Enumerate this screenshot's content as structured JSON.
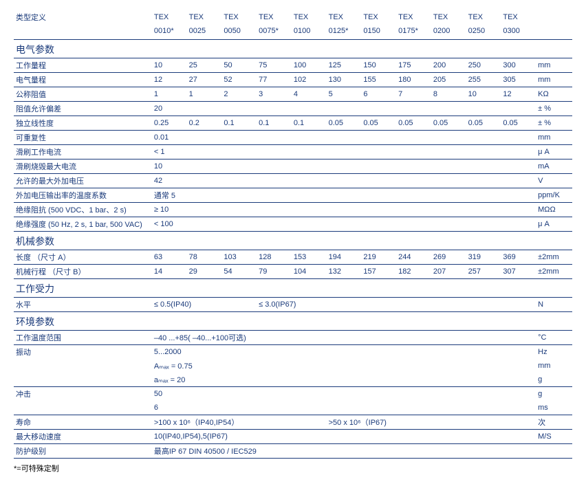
{
  "colors": {
    "primary": "#1a3a7a",
    "background": "#ffffff",
    "footnote": "#000000"
  },
  "fonts": {
    "body_size": 11,
    "section_size": 14
  },
  "header": {
    "type_label": "类型定义",
    "prefix": "TEX",
    "codes": [
      "0010*",
      "0025",
      "0050",
      "0075*",
      "0100",
      "0125*",
      "0150",
      "0175*",
      "0200",
      "0250",
      "0300"
    ]
  },
  "sections": {
    "electrical": "电气参数",
    "mechanical": "机械参数",
    "force": "工作受力",
    "environment": "环境参数"
  },
  "rows": {
    "stroke": {
      "label": "工作量程",
      "vals": [
        "10",
        "25",
        "50",
        "75",
        "100",
        "125",
        "150",
        "175",
        "200",
        "250",
        "300"
      ],
      "unit": "mm"
    },
    "elec_range": {
      "label": "电气量程",
      "vals": [
        "12",
        "27",
        "52",
        "77",
        "102",
        "130",
        "155",
        "180",
        "205",
        "255",
        "305"
      ],
      "unit": "mm"
    },
    "resistance": {
      "label": "公称阻值",
      "vals": [
        "1",
        "1",
        "2",
        "3",
        "4",
        "5",
        "6",
        "7",
        "8",
        "10",
        "12"
      ],
      "unit": "KΩ"
    },
    "tolerance": {
      "label": "阻值允许偏差",
      "vals": [
        "20",
        "",
        "",
        "",
        "",
        "",
        "",
        "",
        "",
        "",
        ""
      ],
      "unit": "± %"
    },
    "linearity": {
      "label": "独立线性度",
      "vals": [
        "0.25",
        "0.2",
        "0.1",
        "0.1",
        "0.1",
        "0.05",
        "0.05",
        "0.05",
        "0.05",
        "0.05",
        "0.05"
      ],
      "unit": "± %"
    },
    "repeat": {
      "label": "可重复性",
      "vals": [
        "0.01",
        "",
        "",
        "",
        "",
        "",
        "",
        "",
        "",
        "",
        ""
      ],
      "unit": "mm"
    },
    "wiper_i": {
      "label": "滑刷工作电流",
      "vals": [
        "< 1",
        "",
        "",
        "",
        "",
        "",
        "",
        "",
        "",
        "",
        ""
      ],
      "unit": "μ A"
    },
    "wiper_max": {
      "label": "滑刷烧毁最大电流",
      "vals": [
        "10",
        "",
        "",
        "",
        "",
        "",
        "",
        "",
        "",
        "",
        ""
      ],
      "unit": "mA"
    },
    "max_v": {
      "label": "允许的最大外加电压",
      "vals": [
        "42",
        "",
        "",
        "",
        "",
        "",
        "",
        "",
        "",
        "",
        ""
      ],
      "unit": "V"
    },
    "temp_coef": {
      "label": "外加电压输出率的温度系数",
      "vals": [
        "通常 5",
        "",
        "",
        "",
        "",
        "",
        "",
        "",
        "",
        "",
        ""
      ],
      "unit": "ppm/K"
    },
    "insul_r": {
      "label": "绝缘阻抗 (500 VDC、1 bar、2 s)",
      "vals": [
        "≥ 10",
        "",
        "",
        "",
        "",
        "",
        "",
        "",
        "",
        "",
        ""
      ],
      "unit": "MΩΩ"
    },
    "insul_s": {
      "label": "绝缘强度 (50 Hz, 2 s, 1 bar, 500 VAC)",
      "vals": [
        "< 100",
        "",
        "",
        "",
        "",
        "",
        "",
        "",
        "",
        "",
        ""
      ],
      "unit": "μ A"
    },
    "length_a": {
      "label": "长度 （尺寸 A）",
      "vals": [
        "63",
        "78",
        "103",
        "128",
        "153",
        "194",
        "219",
        "244",
        "269",
        "319",
        "369"
      ],
      "unit": "±2mm"
    },
    "stroke_b": {
      "label": "机械行程 （尺寸 B）",
      "vals": [
        "14",
        "29",
        "54",
        "79",
        "104",
        "132",
        "157",
        "182",
        "207",
        "257",
        "307"
      ],
      "unit": "±2mm"
    },
    "horiz": {
      "label": "水平",
      "vals": [
        "≤  0.5(IP40)",
        "",
        "",
        "≤  3.0(IP67)",
        "",
        "",
        "",
        "",
        "",
        "",
        ""
      ],
      "unit": "N"
    },
    "temp_range": {
      "label": "工作温度范围",
      "vals": [
        "–40 ...+85( –40...+100可选)",
        "",
        "",
        "",
        "",
        "",
        "",
        "",
        "",
        "",
        ""
      ],
      "unit": "°C"
    },
    "vib1": {
      "label": "振动",
      "vals": [
        "5...2000",
        "",
        "",
        "",
        "",
        "",
        "",
        "",
        "",
        "",
        ""
      ],
      "unit": "Hz"
    },
    "vib2": {
      "label": "",
      "vals": [
        "Aₘₐₓ = 0.75",
        "",
        "",
        "",
        "",
        "",
        "",
        "",
        "",
        "",
        ""
      ],
      "unit": "mm"
    },
    "vib3": {
      "label": "",
      "vals": [
        "aₘₐₓ = 20",
        "",
        "",
        "",
        "",
        "",
        "",
        "",
        "",
        "",
        ""
      ],
      "unit": "g"
    },
    "shock1": {
      "label": "冲击",
      "vals": [
        "50",
        "",
        "",
        "",
        "",
        "",
        "",
        "",
        "",
        "",
        ""
      ],
      "unit": "g"
    },
    "shock2": {
      "label": "",
      "vals": [
        "6",
        "",
        "",
        "",
        "",
        "",
        "",
        "",
        "",
        "",
        ""
      ],
      "unit": "ms"
    },
    "life": {
      "label": "寿命",
      "vals": [
        ">100 x 10⁶（IP40,IP54）",
        "",
        "",
        "",
        "",
        ">50 x 10⁶（IP67)",
        "",
        "",
        "",
        "",
        ""
      ],
      "unit": "次"
    },
    "speed": {
      "label": "最大移动速度",
      "vals": [
        "10(IP40,IP54),5(IP67)",
        "",
        "",
        "",
        "",
        "",
        "",
        "",
        "",
        "",
        ""
      ],
      "unit": "M/S"
    },
    "protection": {
      "label": "防护级别",
      "vals": [
        "最高IP 67 DIN 40500 / IEC529",
        "",
        "",
        "",
        "",
        "",
        "",
        "",
        "",
        "",
        ""
      ],
      "unit": ""
    }
  },
  "footnote": "*=可特殊定制"
}
